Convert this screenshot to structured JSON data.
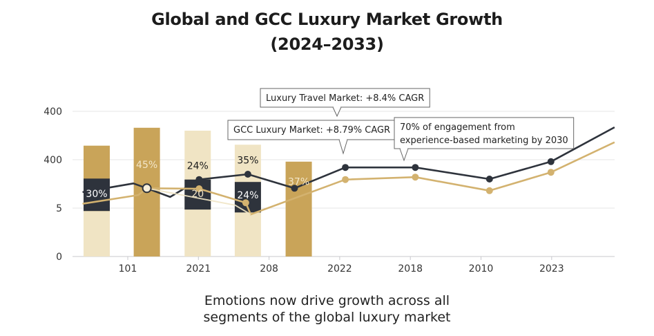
{
  "title_line1": "Global and GCC Luxury Market Growth",
  "title_line2": "(2024–2033)",
  "caption_line1": "Emotions now drive growth across all",
  "caption_line2": "segments of the global luxury market",
  "chart_data": {
    "type": "bar+line",
    "grid": true,
    "legend": "none",
    "y_ticks": [
      {
        "pos": 0,
        "label": "0"
      },
      {
        "pos": 1,
        "label": "5"
      },
      {
        "pos": 2,
        "label": "400"
      },
      {
        "pos": 3,
        "label": "400"
      }
    ],
    "x_ticks": [
      "101",
      "2021",
      "208",
      "2022",
      "2018",
      "2010",
      "2023"
    ],
    "colors": {
      "dark": "#2e333c",
      "gold": "#c9a459",
      "cream": "#f0e4c4",
      "gold_line": "#d3b26f",
      "grid": "#e6e6e6"
    },
    "bars": [
      {
        "x": -0.44,
        "total": 2.29,
        "top_color": "gold",
        "base_color": "cream",
        "dark_band": [
          0.94,
          1.61
        ],
        "label": "30%",
        "label_pos": 1.3,
        "label_color": "#ffffff"
      },
      {
        "x": 0.27,
        "total": 2.66,
        "top_color": "gold",
        "base_color": "gold",
        "label": "45%",
        "label_pos": 1.9,
        "label_color": "#f3e6c8"
      },
      {
        "x": 0.99,
        "total": 2.6,
        "top_color": "cream",
        "base_color": "cream",
        "dark_band": [
          0.97,
          1.59
        ],
        "label": "20",
        "label_pos": 1.3,
        "label_color": "#f3e6c8",
        "above_label": "24%",
        "above_pos": 1.88
      },
      {
        "x": 1.7,
        "total": 2.31,
        "top_color": "cream",
        "base_color": "cream",
        "dark_band": [
          0.91,
          1.54
        ],
        "label": "24%",
        "label_pos": 1.27,
        "label_color": "#ffffff",
        "above_label": "35%",
        "above_pos": 1.99
      },
      {
        "x": 2.42,
        "total": 1.96,
        "top_color": "gold",
        "base_color": "gold",
        "label": "37%",
        "label_pos": 1.55,
        "label_color": "#f3e6c8"
      }
    ],
    "series": [
      {
        "color": "dark",
        "points": [
          [
            -0.64,
            1.33
          ],
          [
            0.08,
            1.51
          ],
          [
            0.27,
            1.41
          ],
          [
            0.6,
            1.23
          ],
          [
            1.01,
            1.59
          ],
          [
            1.7,
            1.7
          ],
          [
            2.36,
            1.41
          ],
          [
            3.08,
            1.84
          ],
          [
            4.07,
            1.84
          ],
          [
            5.12,
            1.6
          ],
          [
            5.99,
            1.96
          ],
          [
            6.89,
            2.67
          ]
        ],
        "markers": [
          4,
          5,
          6,
          7,
          8,
          9,
          10
        ]
      },
      {
        "color": "gold_line",
        "points": [
          [
            -0.64,
            1.09
          ],
          [
            0.15,
            1.27
          ],
          [
            0.27,
            1.41
          ],
          [
            1.01,
            1.4
          ],
          [
            1.67,
            1.11
          ],
          [
            1.74,
            0.87
          ],
          [
            3.08,
            1.59
          ],
          [
            4.07,
            1.64
          ],
          [
            5.12,
            1.36
          ],
          [
            5.99,
            1.74
          ],
          [
            6.89,
            2.36
          ]
        ],
        "markers": [
          3,
          4,
          6,
          7,
          8,
          9
        ]
      },
      {
        "color": "cream",
        "points": [
          [
            0.27,
            1.41
          ],
          [
            1.52,
            1.06
          ],
          [
            1.74,
            0.87
          ]
        ],
        "markers": []
      }
    ],
    "annotations": [
      {
        "lines": [
          "Luxury Travel Market: +8.4% CAGR"
        ]
      },
      {
        "lines": [
          "GCC Luxury Market: +8.79% CAGR"
        ]
      },
      {
        "lines": [
          "70% of engagement from",
          "experience-based marketing by 2030"
        ]
      }
    ]
  }
}
